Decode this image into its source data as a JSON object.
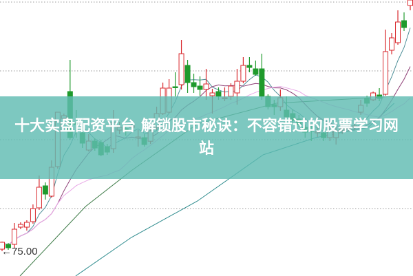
{
  "banner": {
    "title": "十大实盘配资平台 解锁股市秘诀：不容错过的股票学习网站"
  },
  "chart_data": {
    "type": "candlestick",
    "title": "",
    "xlabel": "",
    "ylabel": "",
    "ylim": [
      73.2,
      93.25
    ],
    "grid": true,
    "low_marker": {
      "label": "←75.00",
      "value": 75.0,
      "candle_index": 0
    },
    "colors": {
      "up": "#d8262b",
      "down": "#1f9a2c",
      "ma5": "#4e8f98",
      "ma10": "#8d3c74",
      "ma20": "#e8a6e6",
      "long1": "#3c7a46",
      "long2": "#2b8a8c"
    },
    "candles": [
      [
        75.15,
        75.65,
        75.7,
        75.0
      ],
      [
        75.5,
        75.25,
        75.6,
        75.1
      ],
      [
        75.5,
        76.6,
        77.05,
        75.25
      ],
      [
        76.75,
        76.95,
        77.1,
        76.6
      ],
      [
        76.75,
        77.1,
        77.25,
        76.5
      ],
      [
        77.15,
        78.1,
        78.4,
        77.0
      ],
      [
        78.15,
        79.65,
        80.5,
        78.0
      ],
      [
        79.75,
        79.15,
        80.0,
        78.75
      ],
      [
        79.0,
        81.1,
        81.6,
        78.9
      ],
      [
        81.15,
        85.1,
        85.1,
        81.0
      ],
      [
        84.65,
        84.85,
        85.0,
        84.5
      ],
      [
        86.6,
        83.25,
        88.9,
        83.1
      ],
      [
        84.3,
        84.2,
        85.25,
        83.25
      ],
      [
        83.6,
        82.85,
        84.35,
        82.5
      ],
      [
        82.35,
        83.0,
        83.5,
        82.25
      ],
      [
        83.0,
        82.5,
        83.2,
        82.3
      ],
      [
        82.9,
        82.0,
        83.1,
        81.9
      ],
      [
        82.6,
        82.2,
        82.8,
        82.0
      ],
      [
        82.45,
        84.35,
        85.25,
        82.15
      ],
      [
        83.8,
        84.0,
        84.4,
        83.5
      ],
      [
        83.9,
        83.7,
        84.2,
        83.4
      ],
      [
        84.0,
        84.1,
        84.4,
        83.7
      ],
      [
        83.3,
        83.3,
        83.8,
        82.6
      ],
      [
        83.25,
        82.75,
        83.5,
        82.6
      ],
      [
        82.99,
        83.75,
        84.0,
        82.8
      ],
      [
        84.0,
        85.0,
        85.5,
        83.8
      ],
      [
        85.0,
        86.85,
        87.25,
        84.9
      ],
      [
        85.1,
        86.85,
        87.5,
        85.0
      ],
      [
        86.95,
        86.9,
        88.0,
        86.25
      ],
      [
        87.1,
        89.35,
        90.35,
        86.75
      ],
      [
        88.5,
        87.25,
        88.9,
        86.5
      ],
      [
        87.25,
        86.95,
        87.9,
        86.5
      ],
      [
        87.0,
        86.75,
        87.7,
        86.3
      ],
      [
        86.75,
        87.15,
        88.25,
        86.0
      ],
      [
        86.3,
        86.5,
        86.8,
        85.0
      ],
      [
        86.6,
        86.25,
        86.9,
        86.0
      ],
      [
        86.1,
        86.15,
        86.9,
        85.9
      ],
      [
        86.25,
        87.0,
        87.2,
        86.0
      ],
      [
        86.5,
        87.35,
        88.25,
        85.65
      ],
      [
        87.35,
        88.5,
        89.1,
        87.2
      ],
      [
        88.5,
        88.35,
        89.1,
        88.0
      ],
      [
        88.25,
        87.85,
        88.85,
        87.75
      ],
      [
        88.25,
        86.25,
        89.35,
        86.0
      ],
      [
        86.25,
        85.5,
        86.4,
        85.3
      ],
      [
        85.65,
        85.5,
        86.0,
        84.9
      ],
      [
        85.5,
        86.15,
        86.75,
        85.2
      ],
      [
        85.25,
        84.75,
        86.25,
        84.25
      ],
      [
        85.0,
        84.5,
        85.3,
        84.3
      ],
      [
        84.6,
        84.2,
        84.9,
        84.0
      ],
      [
        84.0,
        83.65,
        84.2,
        83.25
      ],
      [
        83.8,
        83.75,
        84.1,
        83.0
      ],
      [
        83.6,
        83.7,
        84.0,
        83.3
      ],
      [
        83.6,
        83.25,
        84.0,
        83.0
      ],
      [
        83.25,
        83.75,
        84.1,
        83.0
      ],
      [
        83.25,
        83.75,
        84.0,
        82.75
      ],
      [
        83.8,
        83.9,
        84.3,
        83.5
      ],
      [
        83.9,
        84.0,
        84.3,
        83.7
      ],
      [
        84.0,
        84.1,
        84.5,
        83.8
      ],
      [
        85.1,
        85.6,
        86.0,
        84.9
      ],
      [
        86.1,
        85.75,
        86.3,
        85.5
      ],
      [
        86.0,
        86.5,
        86.6,
        85.9
      ],
      [
        86.35,
        86.1,
        86.85,
        85.9
      ],
      [
        86.4,
        89.5,
        91.1,
        86.3
      ],
      [
        89.6,
        90.5,
        90.85,
        89.3
      ],
      [
        90.15,
        91.65,
        92.5,
        90.0
      ],
      [
        91.75,
        91.25,
        92.35,
        91.0
      ],
      [
        92.85,
        93.25,
        93.3,
        92.5
      ]
    ],
    "candle_fields": [
      "open",
      "close",
      "high",
      "low"
    ],
    "long_averages": [
      {
        "points": [
          [
            2.9,
            73.2
          ],
          [
            13.5,
            78.25
          ],
          [
            20.9,
            80.85
          ],
          [
            31.6,
            84.25
          ],
          [
            44.3,
            85.75
          ],
          [
            63.4,
            86.25
          ]
        ]
      },
      {
        "points": [
          [
            11.9,
            73.2
          ],
          [
            20.9,
            76.0
          ],
          [
            31.6,
            78.65
          ],
          [
            42.2,
            82.0
          ],
          [
            50.7,
            83.25
          ],
          [
            59.2,
            84.0
          ],
          [
            63.4,
            85.75
          ]
        ]
      }
    ]
  }
}
